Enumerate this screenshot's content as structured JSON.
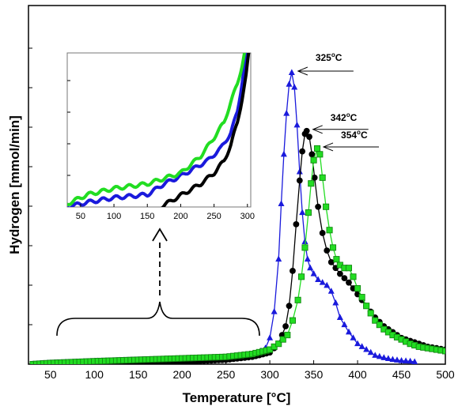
{
  "chart_data": {
    "type": "scatter",
    "xlabel": "Temperature [°C]",
    "ylabel": "Hydrogen [mmol/min]",
    "xlim": [
      25,
      500
    ],
    "ylim": [
      0,
      1
    ],
    "xticks": [
      50,
      100,
      150,
      200,
      250,
      300,
      350,
      400,
      450,
      500
    ],
    "colors": {
      "blue": "#1a1adc",
      "black": "#000000",
      "green": "#22dd22",
      "green_edge": "#118811"
    },
    "series": [
      {
        "color": "#1a1adc",
        "marker": "triangle",
        "x": [
          30,
          50,
          100,
          150,
          200,
          250,
          270,
          285,
          295,
          300,
          305,
          310,
          313,
          316,
          319,
          322,
          325,
          328,
          331,
          334,
          337,
          340,
          343,
          346,
          350,
          355,
          360,
          365,
          370,
          375,
          380,
          390,
          400,
          410,
          420,
          430,
          440,
          450,
          460,
          465
        ],
        "y": [
          0.0,
          0.004,
          0.01,
          0.015,
          0.018,
          0.02,
          0.025,
          0.035,
          0.055,
          0.09,
          0.18,
          0.36,
          0.55,
          0.72,
          0.86,
          0.96,
          1.0,
          0.95,
          0.82,
          0.66,
          0.52,
          0.42,
          0.36,
          0.33,
          0.31,
          0.29,
          0.28,
          0.27,
          0.25,
          0.21,
          0.16,
          0.11,
          0.07,
          0.05,
          0.03,
          0.022,
          0.016,
          0.012,
          0.01,
          0.008
        ]
      },
      {
        "color": "#000000",
        "marker": "circle",
        "x": [
          30,
          100,
          150,
          200,
          250,
          280,
          300,
          310,
          318,
          322,
          326,
          330,
          334,
          337,
          340,
          342,
          345,
          348,
          351,
          355,
          360,
          365,
          370,
          380,
          390,
          400,
          410,
          420,
          430,
          440,
          450,
          460,
          470,
          480,
          490,
          500
        ],
        "y": [
          0.0,
          0.001,
          0.003,
          0.008,
          0.015,
          0.025,
          0.04,
          0.07,
          0.13,
          0.2,
          0.32,
          0.48,
          0.63,
          0.73,
          0.79,
          0.8,
          0.78,
          0.72,
          0.64,
          0.54,
          0.45,
          0.39,
          0.35,
          0.31,
          0.28,
          0.24,
          0.2,
          0.16,
          0.13,
          0.11,
          0.09,
          0.08,
          0.07,
          0.06,
          0.055,
          0.05
        ]
      },
      {
        "color": "#22dd22",
        "marker": "square",
        "x": [
          30,
          50,
          100,
          150,
          200,
          250,
          280,
          300,
          310,
          320,
          326,
          332,
          336,
          340,
          344,
          347,
          350,
          354,
          357,
          360,
          364,
          368,
          372,
          376,
          380,
          385,
          390,
          395,
          400,
          410,
          420,
          430,
          440,
          450,
          460,
          470,
          480,
          490,
          500
        ],
        "y": [
          0.0,
          0.004,
          0.01,
          0.015,
          0.02,
          0.025,
          0.035,
          0.05,
          0.07,
          0.1,
          0.15,
          0.22,
          0.3,
          0.4,
          0.52,
          0.62,
          0.7,
          0.74,
          0.72,
          0.64,
          0.54,
          0.46,
          0.4,
          0.36,
          0.34,
          0.33,
          0.33,
          0.3,
          0.26,
          0.2,
          0.15,
          0.12,
          0.1,
          0.085,
          0.07,
          0.06,
          0.055,
          0.05,
          0.045
        ]
      }
    ],
    "annotations": [
      {
        "text": "325",
        "sup": "o",
        "unit": "C",
        "x": 325,
        "series": 0
      },
      {
        "text": "342",
        "sup": "o",
        "unit": "C",
        "x": 342,
        "series": 1
      },
      {
        "text": "354",
        "sup": "o",
        "unit": "C",
        "x": 354,
        "series": 2
      }
    ],
    "inset": {
      "xlim": [
        30,
        305
      ],
      "ylim": [
        0,
        1
      ],
      "xticks": [
        50,
        100,
        150,
        200,
        250,
        300
      ],
      "zoom_range": [
        50,
        285
      ],
      "series": [
        {
          "color": "#1a1adc",
          "x": [
            30,
            60,
            100,
            150,
            175,
            200,
            220,
            240,
            260,
            275,
            285,
            290,
            295,
            300
          ],
          "y": [
            0.0,
            0.03,
            0.06,
            0.08,
            0.15,
            0.2,
            0.25,
            0.3,
            0.38,
            0.48,
            0.62,
            0.75,
            0.9,
            1.05
          ]
        },
        {
          "color": "#000000",
          "x": [
            170,
            190,
            210,
            230,
            250,
            265,
            275,
            285,
            292,
            298,
            302,
            305
          ],
          "y": [
            0.0,
            0.05,
            0.1,
            0.15,
            0.22,
            0.3,
            0.4,
            0.55,
            0.7,
            0.85,
            1.0,
            1.05
          ]
        },
        {
          "color": "#22dd22",
          "x": [
            30,
            60,
            100,
            150,
            200,
            230,
            250,
            265,
            275,
            285,
            292,
            298
          ],
          "y": [
            0.02,
            0.08,
            0.12,
            0.15,
            0.22,
            0.33,
            0.45,
            0.55,
            0.68,
            0.8,
            0.92,
            1.05
          ]
        }
      ]
    }
  }
}
